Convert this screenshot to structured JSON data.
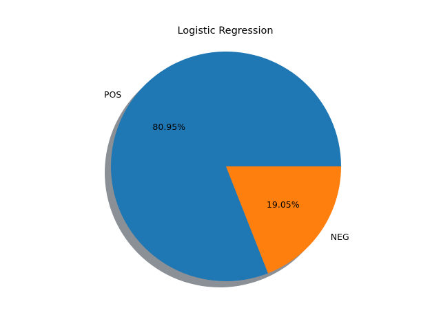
{
  "chart_data": {
    "type": "pie",
    "title": "Logistic Regression",
    "labels": [
      "POS",
      "NEG"
    ],
    "values": [
      80.95,
      19.05
    ],
    "percent_labels": [
      "80.95%",
      "19.05%"
    ],
    "colors": [
      "#1f77b4",
      "#ff7f0e"
    ],
    "shadow": true,
    "shadow_color": "#8a9096",
    "start_angle_deg": 0,
    "direction": "counterclockwise"
  }
}
